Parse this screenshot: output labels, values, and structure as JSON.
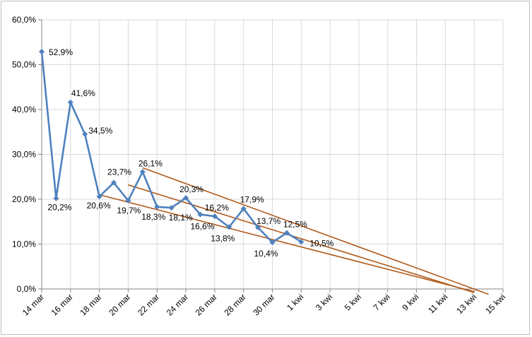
{
  "chart_data": {
    "type": "line",
    "title": "",
    "xlabel": "",
    "ylabel": "",
    "ylim": [
      0,
      60
    ],
    "y_ticks": [
      "0,0%",
      "10,0%",
      "20,0%",
      "30,0%",
      "40,0%",
      "50,0%",
      "60,0%"
    ],
    "x_ticks": [
      "14 mar",
      "16 mar",
      "18 mar",
      "20 mar",
      "22 mar",
      "24 mar",
      "26 mar",
      "28 mar",
      "30 mar",
      "1 kwi",
      "3 kwi",
      "5 kwi",
      "7 kwi",
      "9 kwi",
      "11 kwi",
      "13 kwi",
      "15 kwi"
    ],
    "grid": true,
    "legend": "none",
    "series": [
      {
        "color": "#4f81bd",
        "marker": "diamond",
        "points": [
          {
            "x": "14 mar",
            "y": 52.9,
            "label": "52,9%"
          },
          {
            "x": "15 mar",
            "y": 20.2,
            "label": "20,2%"
          },
          {
            "x": "16 mar",
            "y": 41.6,
            "label": "41,6%"
          },
          {
            "x": "17 mar",
            "y": 34.5,
            "label": "34,5%"
          },
          {
            "x": "18 mar",
            "y": 20.6,
            "label": "20,6%"
          },
          {
            "x": "19 mar",
            "y": 23.7,
            "label": "23,7%"
          },
          {
            "x": "20 mar",
            "y": 19.7,
            "label": "19,7%"
          },
          {
            "x": "21 mar",
            "y": 26.1,
            "label": "26,1%"
          },
          {
            "x": "22 mar",
            "y": 18.3,
            "label": "18,3%"
          },
          {
            "x": "23 mar",
            "y": 18.1,
            "label": "18,1%"
          },
          {
            "x": "24 mar",
            "y": 20.3,
            "label": "20,3%"
          },
          {
            "x": "25 mar",
            "y": 16.6,
            "label": "16,6%"
          },
          {
            "x": "26 mar",
            "y": 16.2,
            "label": "16,2%"
          },
          {
            "x": "27 mar",
            "y": 13.8,
            "label": "13,8%"
          },
          {
            "x": "28 mar",
            "y": 17.9,
            "label": "17,9%"
          },
          {
            "x": "29 mar",
            "y": 13.7,
            "label": "13,7%"
          },
          {
            "x": "30 mar",
            "y": 10.4,
            "label": "10,4%"
          },
          {
            "x": "31 mar",
            "y": 12.5,
            "label": "12,5%"
          },
          {
            "x": "1 kwi",
            "y": 10.5,
            "label": "10,5%"
          }
        ]
      }
    ],
    "trendlines": [
      {
        "color": "#b05a1a",
        "start": {
          "x": "21 mar",
          "y": 27.0
        },
        "end": {
          "x": "14 kwi",
          "y": -1.2
        }
      },
      {
        "color": "#b05a1a",
        "start": {
          "x": "20 mar",
          "y": 23.2
        },
        "end": {
          "x": "13 kwi",
          "y": -0.8
        }
      },
      {
        "color": "#b05a1a",
        "start": {
          "x": "18 mar",
          "y": 21.0
        },
        "end": {
          "x": "13 kwi",
          "y": -0.6
        }
      }
    ]
  }
}
